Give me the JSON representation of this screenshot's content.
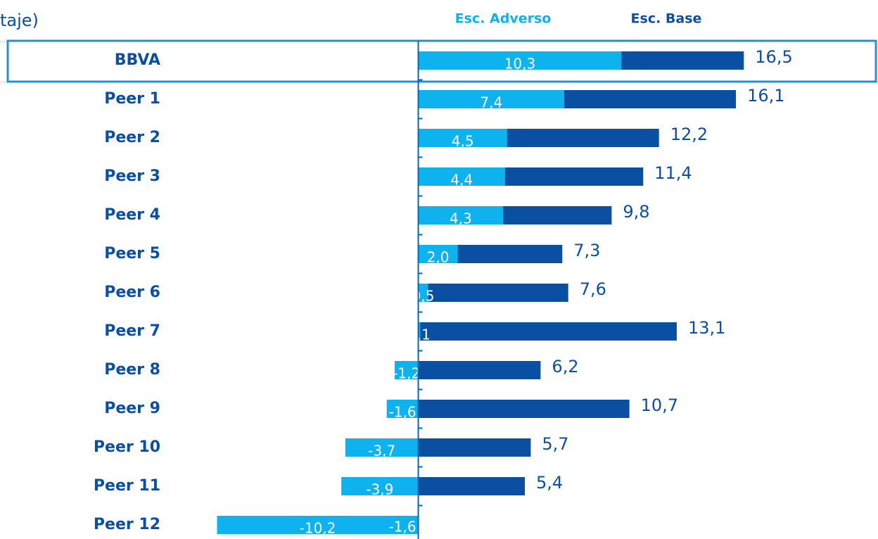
{
  "chart_data": {
    "type": "bar",
    "orientation": "horizontal",
    "subtitle": "taje)",
    "categories": [
      "BBVA",
      "Peer 1",
      "Peer 2",
      "Peer 3",
      "Peer 4",
      "Peer 5",
      "Peer 6",
      "Peer 7",
      "Peer 8",
      "Peer 9",
      "Peer 10",
      "Peer 11",
      "Peer 12"
    ],
    "highlight": "BBVA",
    "xlim": [
      -21.2,
      23.3
    ],
    "series": [
      {
        "name": "Esc. Base",
        "color": "#0b4fa3",
        "values": [
          16.5,
          16.1,
          12.2,
          11.4,
          9.8,
          7.3,
          7.6,
          13.1,
          6.2,
          10.7,
          5.7,
          5.4,
          -1.6
        ],
        "value_labels": [
          "16,5",
          "16,1",
          "12,2",
          "11,4",
          "9,8",
          "7,3",
          "7,6",
          "13,1",
          "6,2",
          "10,7",
          "5,7",
          "5,4",
          "-1,6"
        ]
      },
      {
        "name": "Esc. Adverso",
        "color": "#0db2ee",
        "values": [
          10.3,
          7.4,
          4.5,
          4.4,
          4.3,
          2.0,
          0.5,
          0.1,
          -1.2,
          -1.6,
          -3.7,
          -3.9,
          -10.2
        ],
        "value_labels": [
          "10,3",
          "7,4",
          "4,5",
          "4,4",
          "4,3",
          "2,0",
          "0,5",
          "0,1",
          "-1,2",
          "-1,6",
          "-3,7",
          "-3,9",
          "-10,2"
        ]
      }
    ]
  }
}
